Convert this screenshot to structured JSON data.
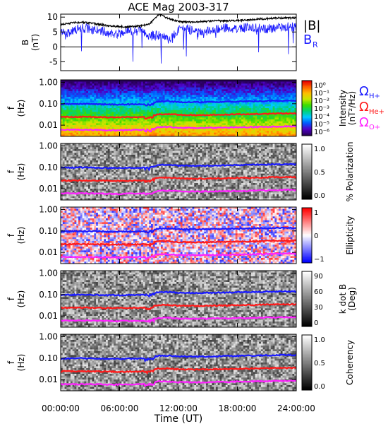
{
  "title": "ACE Mag 2003-317",
  "colors": {
    "black": "#000000",
    "blue": "#1a1aff",
    "red": "#ff1a1a",
    "magenta": "#ff22ff",
    "background": "#ffffff"
  },
  "chart_data": [
    {
      "type": "line",
      "panel": "magnetic-field",
      "ylabel": "B",
      "yunit": "(nT)",
      "ylim": [
        -8,
        11
      ],
      "yticks": [
        "10",
        "5",
        "0",
        "-5"
      ],
      "ytick_values": [
        10,
        5,
        0,
        -5
      ],
      "legend": [
        {
          "label": "|B|",
          "color": "#000000"
        },
        {
          "label": "B",
          "subscript": "R",
          "color": "#1a1aff"
        }
      ],
      "x": [
        0,
        1,
        2,
        3,
        4,
        5,
        6,
        7,
        8,
        9,
        10,
        11,
        12,
        13,
        14,
        15,
        16,
        17,
        18,
        19,
        20,
        21,
        22,
        23,
        24
      ],
      "series": [
        {
          "name": "|B|",
          "values": [
            7.5,
            8.0,
            8.3,
            8.0,
            7.5,
            7.0,
            6.8,
            6.7,
            7.0,
            7.5,
            11.0,
            9.5,
            8.5,
            8.3,
            8.5,
            8.6,
            8.8,
            8.7,
            8.9,
            9.0,
            9.3,
            9.5,
            9.7,
            9.8,
            9.6
          ]
        },
        {
          "name": "B_R",
          "values": [
            4.5,
            5.0,
            6.5,
            6.0,
            5.5,
            4.5,
            4.5,
            5.0,
            5.5,
            3.5,
            4.0,
            2.5,
            5.5,
            6.0,
            4.5,
            5.5,
            6.0,
            6.5,
            6.0,
            6.5,
            6.5,
            6.0,
            6.5,
            7.0,
            6.5
          ]
        }
      ]
    },
    {
      "type": "heatmap",
      "panel": "intensity",
      "ylabel": "f",
      "yunit": "(Hz)",
      "yscale": "log",
      "ylim": [
        0.003,
        1.0
      ],
      "yticks": [
        "1.00",
        "0.10",
        "0.01"
      ],
      "colorbar": {
        "label": "Intensity",
        "unit": "(nT²/Hz)",
        "ticks": [
          "10⁰",
          "10⁻¹",
          "10⁻²",
          "10⁻³",
          "10⁻⁴",
          "10⁻⁵",
          "10⁻⁶"
        ],
        "scale": "rainbow"
      },
      "annotations": [
        {
          "symbol": "Ω",
          "subscript": "H+",
          "color": "#1a1aff"
        },
        {
          "symbol": "Ω",
          "subscript": "He+",
          "color": "#ff1a1a"
        },
        {
          "symbol": "Ω",
          "subscript": "O+",
          "color": "#ff22ff"
        }
      ]
    },
    {
      "type": "heatmap",
      "panel": "polarization",
      "ylabel": "f",
      "yunit": "(Hz)",
      "yscale": "log",
      "colorbar": {
        "label": "% Polarization",
        "ticks": [
          "1.0",
          "0.5",
          "0.0"
        ],
        "scale": "gray"
      }
    },
    {
      "type": "heatmap",
      "panel": "ellipticity",
      "ylabel": "f",
      "yunit": "(Hz)",
      "yscale": "log",
      "colorbar": {
        "label": "Ellipticity",
        "ticks": [
          "1",
          "0",
          "−1"
        ],
        "scale": "bwr"
      }
    },
    {
      "type": "heatmap",
      "panel": "kdotb",
      "ylabel": "f",
      "yunit": "(Hz)",
      "yscale": "log",
      "colorbar": {
        "label": "k dot B",
        "unit": "(Deg)",
        "ticks": [
          "90",
          "60",
          "30",
          "0"
        ],
        "scale": "gray"
      }
    },
    {
      "type": "heatmap",
      "panel": "coherency",
      "ylabel": "f",
      "yunit": "(Hz)",
      "yscale": "log",
      "colorbar": {
        "label": "Coherency",
        "ticks": [
          "1.0",
          "0.5",
          "0.0"
        ],
        "scale": "gray"
      }
    }
  ],
  "gyrofrequencies": {
    "hours": [
      0,
      1,
      2,
      3,
      4,
      5,
      6,
      7,
      8,
      9,
      10,
      11,
      12,
      13,
      14,
      15,
      16,
      17,
      18,
      19,
      20,
      21,
      22,
      23,
      24
    ],
    "H_plus_hz": [
      0.096,
      0.097,
      0.098,
      0.097,
      0.095,
      0.093,
      0.093,
      0.094,
      0.095,
      0.099,
      0.13,
      0.13,
      0.12,
      0.12,
      0.118,
      0.12,
      0.123,
      0.125,
      0.127,
      0.13,
      0.132,
      0.135,
      0.138,
      0.14,
      0.138
    ],
    "He_plus_hz": [
      0.024,
      0.0243,
      0.0245,
      0.0243,
      0.0238,
      0.0233,
      0.0233,
      0.0235,
      0.0238,
      0.0248,
      0.033,
      0.033,
      0.03,
      0.03,
      0.0295,
      0.03,
      0.031,
      0.031,
      0.032,
      0.032,
      0.033,
      0.034,
      0.035,
      0.035,
      0.035
    ],
    "O_plus_hz": [
      0.006,
      0.0061,
      0.0061,
      0.0061,
      0.006,
      0.0058,
      0.0058,
      0.0059,
      0.006,
      0.0062,
      0.0082,
      0.0082,
      0.0075,
      0.0075,
      0.0074,
      0.0075,
      0.0077,
      0.0078,
      0.008,
      0.008,
      0.0083,
      0.0084,
      0.0086,
      0.0088,
      0.0087
    ]
  },
  "xaxis": {
    "label": "Time (UT)",
    "ticks": [
      "00:00:00",
      "06:00:00",
      "12:00:00",
      "18:00:00",
      "24:00:00"
    ],
    "tick_hours": [
      0,
      6,
      12,
      18,
      24
    ],
    "range_hours": [
      0,
      24
    ]
  }
}
